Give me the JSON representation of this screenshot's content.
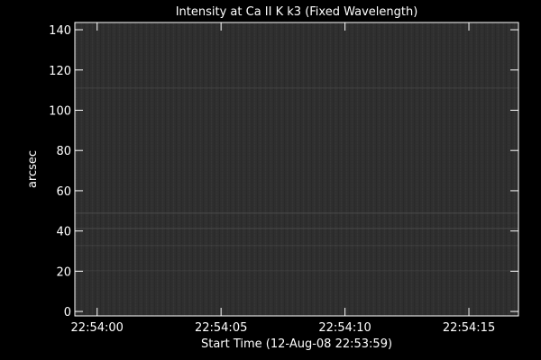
{
  "chart_data": {
    "type": "image",
    "title": "Intensity at Ca II K k3 (Fixed Wavelength)",
    "xlabel": "Start Time (12-Aug-08 22:53:59)",
    "ylabel": "arcsec",
    "xlim": [
      -0.9,
      17
    ],
    "xticks": [
      {
        "value": 0,
        "label": "22:54:00"
      },
      {
        "value": 5,
        "label": "22:54:05"
      },
      {
        "value": 10,
        "label": "22:54:10"
      },
      {
        "value": 15,
        "label": "22:54:15"
      }
    ],
    "ylim": [
      -2.2,
      143.6
    ],
    "yticks": [
      0,
      20,
      40,
      60,
      80,
      100,
      120,
      140
    ],
    "image_color": "#2f2f2f"
  }
}
